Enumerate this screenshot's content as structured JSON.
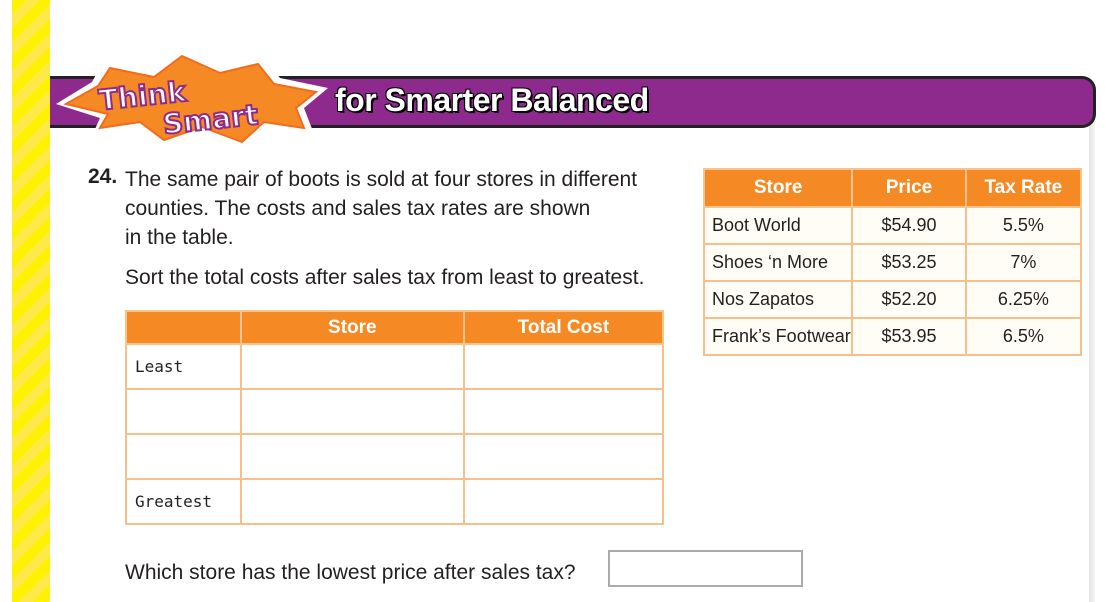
{
  "banner": {
    "logo_text": "Think Smart",
    "title": "for Smarter Balanced",
    "color": "#8e2a8e"
  },
  "question": {
    "number": "24.",
    "lines": [
      "The same pair of boots is sold at four stores in different",
      "counties. The costs and sales tax rates are shown",
      "in the table."
    ],
    "instruction": "Sort the total costs after sales tax from least to greatest.",
    "final_question": "Which store has the lowest price after sales tax?"
  },
  "sort_table": {
    "headers": [
      "",
      "Store",
      "Total Cost"
    ],
    "rows": [
      [
        "Least",
        "",
        ""
      ],
      [
        "",
        "",
        ""
      ],
      [
        "",
        "",
        ""
      ],
      [
        "Greatest",
        "",
        ""
      ]
    ]
  },
  "store_table": {
    "headers": [
      "Store",
      "Price",
      "Tax Rate"
    ],
    "rows": [
      [
        "Boot World",
        "$54.90",
        "5.5%"
      ],
      [
        "Shoes ‘n More",
        "$53.25",
        "7%"
      ],
      [
        "Nos Zapatos",
        "$52.20",
        "6.25%"
      ],
      [
        "Frank’s Footwear",
        "$53.95",
        "6.5%"
      ]
    ]
  },
  "accent_color": "#f58a25"
}
